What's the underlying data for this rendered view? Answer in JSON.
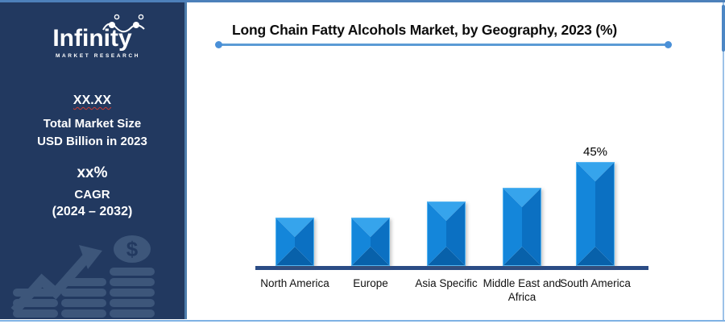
{
  "colors": {
    "sidebar_bg": "#223960",
    "sidebar_border": "#4d7dac",
    "frame_border": "#7fb2e4",
    "accent_line": "#5b9bd5",
    "axis": "#2b4c85",
    "bar_main": "#1486da",
    "bar_bevel_top": "#36a4ec",
    "bar_bevel_bottom": "#0861aa",
    "wavy_underline": "#cf3a30",
    "watermark": "#3d567a"
  },
  "sidebar": {
    "logo": {
      "brand": "Infinity",
      "tagline": "MARKET RESEARCH",
      "icon": "infinity-figures-icon"
    },
    "market_size": {
      "value": "XX.XX",
      "title": "Total Market Size",
      "subtitle": "USD Billion in 2023"
    },
    "cagr": {
      "value": "xx%",
      "label": "CAGR",
      "period": "(2024 – 2032)"
    },
    "watermark_icon": "growth-chart-dollar-icon"
  },
  "chart_data": {
    "type": "bar",
    "title": "Long Chain Fatty Alcohols Market, by Geography, 2023 (%)",
    "categories": [
      "North America",
      "Europe",
      "Asia Specific",
      "Middle East and Africa",
      "South America"
    ],
    "values": [
      21,
      21,
      28,
      34,
      45
    ],
    "data_labels": [
      "",
      "",
      "",
      "",
      "45%"
    ],
    "unit": "%",
    "xlabel": "",
    "ylabel": "",
    "ylim": [
      0,
      50
    ],
    "grid": false,
    "legend": false,
    "bar_color": "#1486da"
  }
}
